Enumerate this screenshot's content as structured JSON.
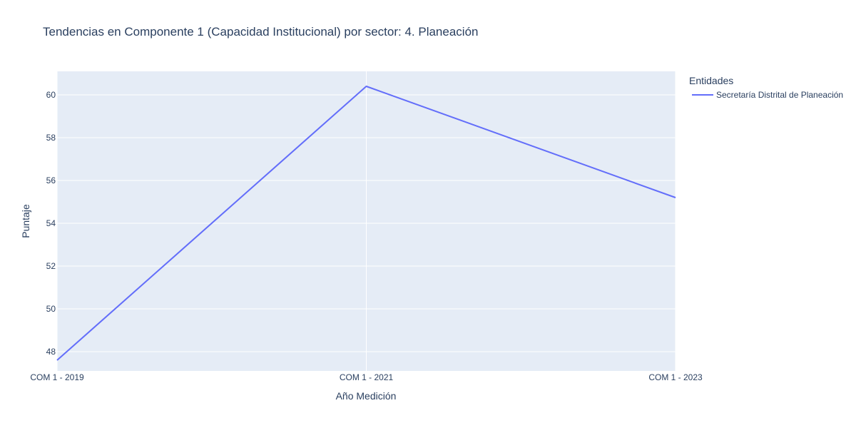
{
  "chart_data": {
    "type": "line",
    "title": "Tendencias en Componente 1 (Capacidad Institucional) por sector: 4. Planeación",
    "xlabel": "Año Medición",
    "ylabel": "Puntaje",
    "categories": [
      "COM 1 - 2019",
      "COM 1 - 2021",
      "COM 1 - 2023"
    ],
    "y_ticks": [
      48,
      50,
      52,
      54,
      56,
      58,
      60
    ],
    "ylim": [
      47.1,
      61.1
    ],
    "grid": true,
    "legend": {
      "title": "Entidades",
      "placement": "right-top"
    },
    "series": [
      {
        "name": "Secretaría Distrital de Planeación",
        "color": "#636efa",
        "values": [
          47.6,
          60.4,
          55.2
        ]
      }
    ]
  },
  "colors": {
    "plot_background": "#e5ecf6",
    "text": "#2a3f5f"
  }
}
